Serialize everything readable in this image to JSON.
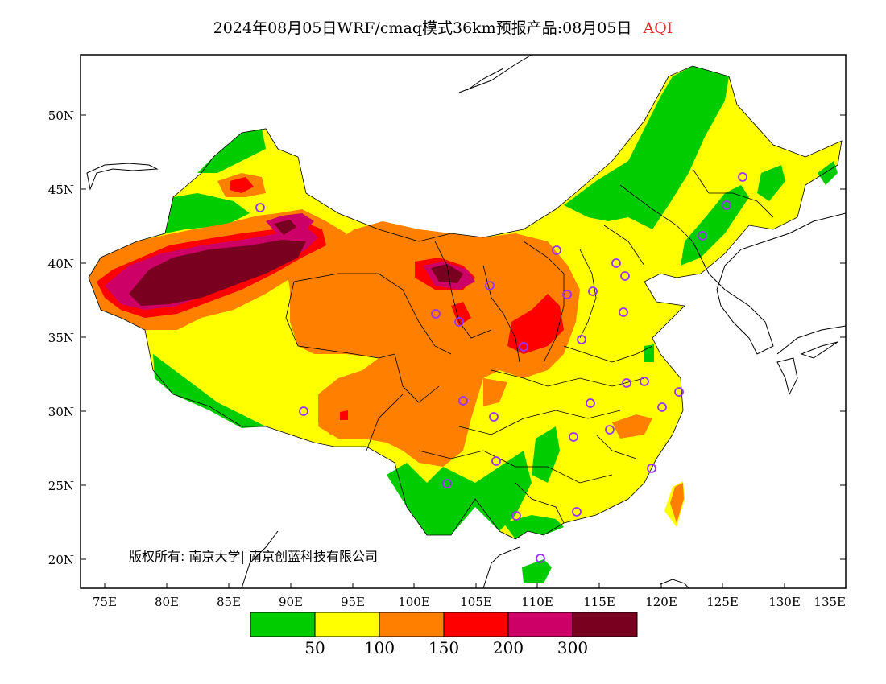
{
  "title": {
    "main": "2024年08月05日WRF/cmaq模式36km预报产品:08月05日",
    "highlight": "AQI"
  },
  "axes": {
    "lat_labels": [
      "50N",
      "45N",
      "40N",
      "35N",
      "30N",
      "25N",
      "20N"
    ],
    "lon_labels": [
      "75E",
      "80E",
      "85E",
      "90E",
      "95E",
      "100E",
      "105E",
      "110E",
      "115E",
      "120E",
      "125E",
      "130E",
      "135E"
    ]
  },
  "copyright": "版权所有: 南京大学| 南京创蓝科技有限公司",
  "legend": {
    "colors": [
      "#00cc00",
      "#ffff00",
      "#ff8000",
      "#ff0000",
      "#cc0066",
      "#7a0020"
    ],
    "thresholds": [
      "50",
      "100",
      "150",
      "200",
      "300"
    ]
  }
}
